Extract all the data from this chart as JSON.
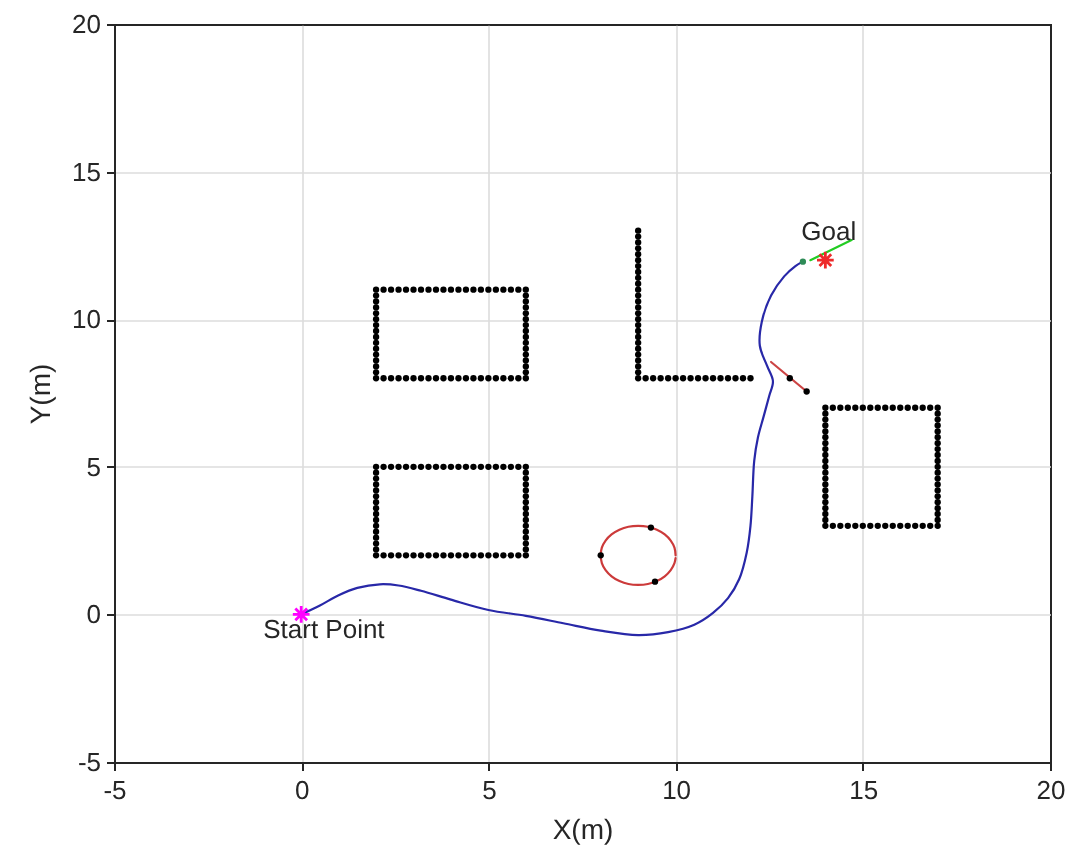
{
  "chart_data": {
    "type": "scatter",
    "marker": "circle",
    "xlabel": "X(m)",
    "ylabel": "Y(m)",
    "xlim": [
      -5,
      20
    ],
    "ylim": [
      -5,
      20
    ],
    "xticks": [
      -5,
      0,
      5,
      10,
      15,
      20
    ],
    "yticks": [
      -5,
      0,
      5,
      10,
      15,
      20
    ],
    "grid": true,
    "annotations": [
      {
        "text": "Goal",
        "x": 14,
        "y": 12
      },
      {
        "text": "Start Point",
        "x": 0,
        "y": 0
      }
    ],
    "series": [
      {
        "color": "#000000",
        "x": [
          2,
          2.2,
          2.4,
          2.6,
          2.8,
          3,
          3.2,
          3.4,
          3.6,
          3.8,
          4,
          4.2,
          4.4,
          4.6,
          4.8,
          5,
          5.2,
          5.4,
          5.6,
          5.8,
          6,
          2,
          2.2,
          2.4,
          2.6,
          2.8,
          3,
          3.2,
          3.4,
          3.6,
          3.8,
          4,
          4.2,
          4.4,
          4.6,
          4.8,
          5,
          5.2,
          5.4,
          5.6,
          5.8,
          6,
          2,
          2,
          2,
          2,
          2,
          2,
          2,
          2,
          2,
          2,
          2,
          2,
          2,
          2,
          6,
          6,
          6,
          6,
          6,
          6,
          6,
          6,
          6,
          6,
          6,
          6,
          6,
          6
        ],
        "values": [
          8,
          8,
          8,
          8,
          8,
          8,
          8,
          8,
          8,
          8,
          8,
          8,
          8,
          8,
          8,
          8,
          8,
          8,
          8,
          8,
          8,
          11,
          11,
          11,
          11,
          11,
          11,
          11,
          11,
          11,
          11,
          11,
          11,
          11,
          11,
          11,
          11,
          11,
          11,
          11,
          11,
          11,
          8.2,
          8.4,
          8.6,
          8.8,
          9,
          9.2,
          9.4,
          9.6,
          9.8,
          10,
          10.2,
          10.4,
          10.6,
          10.8,
          8.2,
          8.4,
          8.6,
          8.8,
          9,
          9.2,
          9.4,
          9.6,
          9.8,
          10,
          10.2,
          10.4,
          10.6,
          10.8
        ]
      },
      {
        "color": "#000000",
        "x": [
          2,
          2.2,
          2.4,
          2.6,
          2.8,
          3,
          3.2,
          3.4,
          3.6,
          3.8,
          4,
          4.2,
          4.4,
          4.6,
          4.8,
          5,
          5.2,
          5.4,
          5.6,
          5.8,
          6,
          2,
          2.2,
          2.4,
          2.6,
          2.8,
          3,
          3.2,
          3.4,
          3.6,
          3.8,
          4,
          4.2,
          4.4,
          4.6,
          4.8,
          5,
          5.2,
          5.4,
          5.6,
          5.8,
          6,
          2,
          2,
          2,
          2,
          2,
          2,
          2,
          2,
          2,
          2,
          2,
          2,
          2,
          2,
          6,
          6,
          6,
          6,
          6,
          6,
          6,
          6,
          6,
          6,
          6,
          6,
          6,
          6
        ],
        "values": [
          2,
          2,
          2,
          2,
          2,
          2,
          2,
          2,
          2,
          2,
          2,
          2,
          2,
          2,
          2,
          2,
          2,
          2,
          2,
          2,
          2,
          5,
          5,
          5,
          5,
          5,
          5,
          5,
          5,
          5,
          5,
          5,
          5,
          5,
          5,
          5,
          5,
          5,
          5,
          5,
          5,
          5,
          2.2,
          2.4,
          2.6,
          2.8,
          3,
          3.2,
          3.4,
          3.6,
          3.8,
          4,
          4.2,
          4.4,
          4.6,
          4.8,
          2.2,
          2.4,
          2.6,
          2.8,
          3,
          3.2,
          3.4,
          3.6,
          3.8,
          4,
          4.2,
          4.4,
          4.6,
          4.8
        ]
      },
      {
        "color": "#000000",
        "x": [
          9,
          9,
          9,
          9,
          9,
          9,
          9,
          9,
          9,
          9,
          9,
          9,
          9,
          9,
          9,
          9,
          9,
          9,
          9,
          9,
          9,
          9,
          9,
          9,
          9,
          9,
          9.2,
          9.4,
          9.6,
          9.8,
          10,
          10.2,
          10.4,
          10.6,
          10.8,
          11,
          11.2,
          11.4,
          11.6,
          11.8,
          12
        ],
        "values": [
          8,
          8.2,
          8.4,
          8.6,
          8.8,
          9,
          9.2,
          9.4,
          9.6,
          9.8,
          10,
          10.2,
          10.4,
          10.6,
          10.8,
          11,
          11.2,
          11.4,
          11.6,
          11.8,
          12,
          12.2,
          12.4,
          12.6,
          12.8,
          13,
          8,
          8,
          8,
          8,
          8,
          8,
          8,
          8,
          8,
          8,
          8,
          8,
          8,
          8,
          8
        ]
      },
      {
        "color": "#000000",
        "x": [
          14,
          14.2,
          14.4,
          14.6,
          14.8,
          15,
          15.2,
          15.4,
          15.6,
          15.8,
          16,
          16.2,
          16.4,
          16.6,
          16.8,
          17,
          14,
          14.2,
          14.4,
          14.6,
          14.8,
          15,
          15.2,
          15.4,
          15.6,
          15.8,
          16,
          16.2,
          16.4,
          16.6,
          16.8,
          17,
          14,
          14,
          14,
          14,
          14,
          14,
          14,
          14,
          14,
          14,
          14,
          14,
          14,
          14,
          14,
          14,
          14,
          14,
          14,
          17,
          17,
          17,
          17,
          17,
          17,
          17,
          17,
          17,
          17,
          17,
          17,
          17,
          17,
          17,
          17,
          17,
          17,
          17
        ],
        "values": [
          3,
          3,
          3,
          3,
          3,
          3,
          3,
          3,
          3,
          3,
          3,
          3,
          3,
          3,
          3,
          3,
          7,
          7,
          7,
          7,
          7,
          7,
          7,
          7,
          7,
          7,
          7,
          7,
          7,
          7,
          7,
          7,
          3.2,
          3.4,
          3.6,
          3.8,
          4,
          4.2,
          4.4,
          4.6,
          4.8,
          5,
          5.2,
          5.4,
          5.6,
          5.8,
          6,
          6.2,
          6.4,
          6.6,
          6.8,
          3.2,
          3.4,
          3.6,
          3.8,
          4,
          4.2,
          4.4,
          4.6,
          4.8,
          5,
          5.2,
          5.4,
          5.6,
          5.8,
          6,
          6.2,
          6.4,
          6.6,
          6.8
        ]
      },
      {
        "type": "line",
        "marker": "none",
        "color": "#2828a8",
        "x": [
          0,
          0.5,
          1,
          1.5,
          2.1,
          2.6,
          3.2,
          4,
          5,
          6,
          7,
          8,
          9,
          9.8,
          10.5,
          11,
          11.4,
          11.7,
          11.9,
          12,
          12.05,
          12.1,
          12.2,
          12.35,
          12.5,
          12.6,
          12.45,
          12.25,
          12.3,
          12.55,
          12.9,
          13.2,
          13.4
        ],
        "values": [
          0,
          0.3,
          0.65,
          0.9,
          1.02,
          0.98,
          0.8,
          0.5,
          0.15,
          -0.05,
          -0.3,
          -0.55,
          -0.7,
          -0.6,
          -0.35,
          0.05,
          0.55,
          1.2,
          2.1,
          3,
          4,
          5.2,
          6,
          6.7,
          7.4,
          7.9,
          8.4,
          9.1,
          9.9,
          10.8,
          11.45,
          11.8,
          11.95
        ]
      },
      {
        "type": "line",
        "marker": "none",
        "color": "#cc3a3a",
        "x": [
          10,
          9.97,
          9.87,
          9.71,
          9.5,
          9.26,
          9,
          8.74,
          8.5,
          8.29,
          8.13,
          8.03,
          8,
          8.03,
          8.13,
          8.29,
          8.5,
          8.74,
          9,
          9.26,
          9.5,
          9.71,
          9.87,
          9.97,
          10
        ],
        "values": [
          2,
          2.26,
          2.5,
          2.71,
          2.87,
          2.97,
          3,
          2.97,
          2.87,
          2.71,
          2.5,
          2.26,
          2,
          1.74,
          1.5,
          1.29,
          1.13,
          1.03,
          1,
          1.03,
          1.13,
          1.29,
          1.5,
          1.74,
          1.91
        ]
      },
      {
        "color": "#000000",
        "x": [
          8,
          9.34,
          9.45
        ],
        "values": [
          2,
          2.94,
          1.11
        ]
      },
      {
        "type": "line",
        "marker": "none",
        "color": "#cc4444",
        "x": [
          12.55,
          13.5
        ],
        "values": [
          8.55,
          7.55
        ]
      },
      {
        "color": "#000000",
        "x": [
          13.05,
          13.5
        ],
        "values": [
          8,
          7.55
        ]
      },
      {
        "type": "line",
        "marker": "none",
        "color": "#22cc22",
        "x": [
          13.6,
          14.7
        ],
        "values": [
          12,
          12.68
        ]
      },
      {
        "color": "#2e8b57",
        "x": [
          13.4
        ],
        "values": [
          11.95
        ]
      },
      {
        "color": "#ee2a2a",
        "marker": "cross",
        "x": [
          14
        ],
        "values": [
          12
        ]
      },
      {
        "color": "#ff00ff",
        "marker": "cross",
        "x": [
          0
        ],
        "values": [
          0
        ]
      }
    ]
  }
}
